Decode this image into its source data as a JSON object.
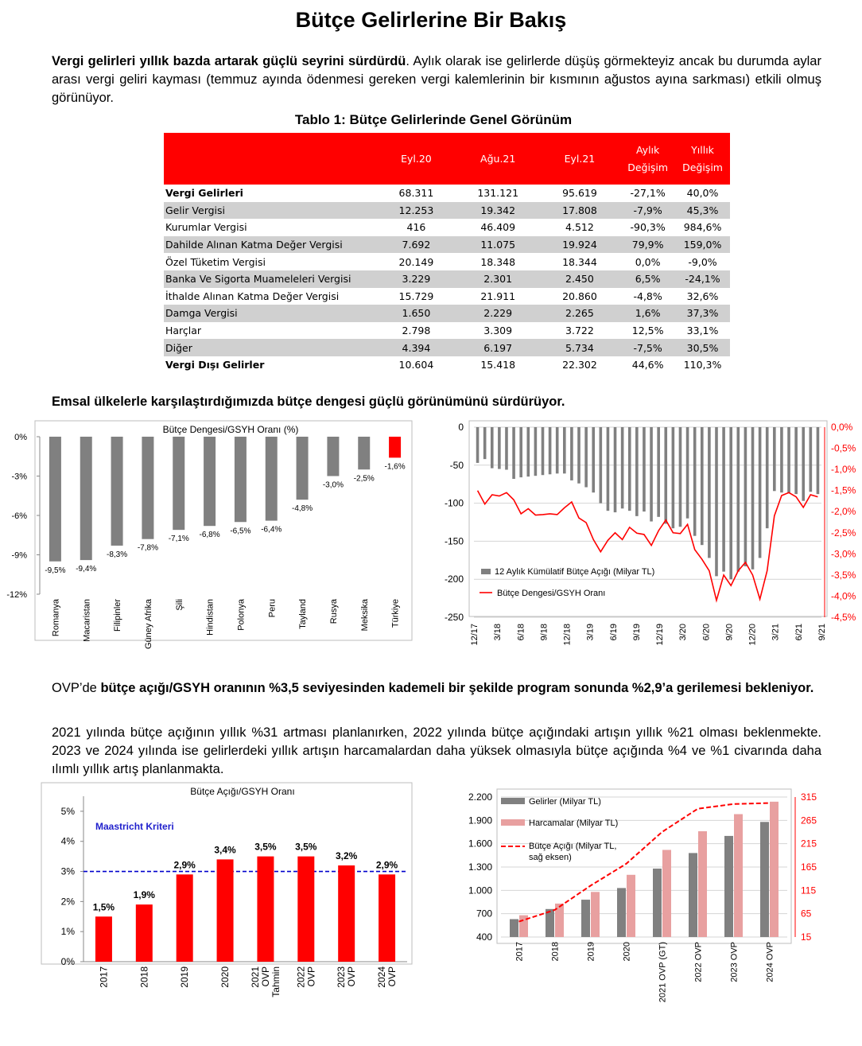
{
  "title": "Bütçe Gelirlerine Bir Bakış",
  "para1": {
    "bold": "Vergi gelirleri yıllık bazda artarak güçlü seyrini sürdürdü",
    "rest": ". Aylık olarak ise gelirlerde düşüş görmekteyiz ancak bu durumda aylar arası vergi geliri kayması (temmuz ayında ödenmesi gereken vergi kalemlerinin bir kısmının ağustos ayına sarkması) etkili olmuş görünüyor."
  },
  "table": {
    "caption": "Tablo 1: Bütçe Gelirlerinde Genel Görünüm",
    "headers": [
      "",
      "Eyl.20",
      "Ağu.21",
      "Eyl.21",
      "Aylık Değişim",
      "Yıllık Değişim"
    ],
    "rows": [
      {
        "label": "Vergi Gelirleri",
        "values": [
          "68.311",
          "131.121",
          "95.619",
          "-27,1%",
          "40,0%"
        ],
        "bold": true,
        "shade": false
      },
      {
        "label": "Gelir Vergisi",
        "values": [
          "12.253",
          "19.342",
          "17.808",
          "-7,9%",
          "45,3%"
        ],
        "bold": false,
        "shade": true
      },
      {
        "label": "Kurumlar Vergisi",
        "values": [
          "416",
          "46.409",
          "4.512",
          "-90,3%",
          "984,6%"
        ],
        "bold": false,
        "shade": false
      },
      {
        "label": "Dahilde Alınan Katma Değer Vergisi",
        "values": [
          "7.692",
          "11.075",
          "19.924",
          "79,9%",
          "159,0%"
        ],
        "bold": false,
        "shade": true
      },
      {
        "label": "Özel Tüketim Vergisi",
        "values": [
          "20.149",
          "18.348",
          "18.344",
          "0,0%",
          "-9,0%"
        ],
        "bold": false,
        "shade": false
      },
      {
        "label": "Banka Ve Sigorta Muameleleri Vergisi",
        "values": [
          "3.229",
          "2.301",
          "2.450",
          "6,5%",
          "-24,1%"
        ],
        "bold": false,
        "shade": true
      },
      {
        "label": "İthalde Alınan Katma Değer Vergisi",
        "values": [
          "15.729",
          "21.911",
          "20.860",
          "-4,8%",
          "32,6%"
        ],
        "bold": false,
        "shade": false
      },
      {
        "label": "Damga Vergisi",
        "values": [
          "1.650",
          "2.229",
          "2.265",
          "1,6%",
          "37,3%"
        ],
        "bold": false,
        "shade": true
      },
      {
        "label": "Harçlar",
        "values": [
          "2.798",
          "3.309",
          "3.722",
          "12,5%",
          "33,1%"
        ],
        "bold": false,
        "shade": false
      },
      {
        "label": "Diğer",
        "values": [
          "4.394",
          "6.197",
          "5.734",
          "-7,5%",
          "30,5%"
        ],
        "bold": false,
        "shade": true
      },
      {
        "label": "Vergi Dışı Gelirler",
        "values": [
          "10.604",
          "15.418",
          "22.302",
          "44,6%",
          "110,3%"
        ],
        "bold": true,
        "shade": false
      }
    ]
  },
  "para2": "Emsal ülkelerle karşılaştırdığımızda bütçe dengesi güçlü görünümünü sürdürüyor.",
  "para3": {
    "pre": "OVP’de ",
    "bold": "bütçe açığı/GSYH oranının %3,5 seviyesinden kademeli bir şekilde program sonunda %2,9’a gerilemesi bekleniyor."
  },
  "para4": "2021 yılında bütçe açığının yıllık %31 artması planlanırken, 2022 yılında bütçe açığındaki artışın yıllık %21 olması beklenmekte. 2023 ve 2024 yılında ise gelirlerdeki yıllık artışın harcamalardan daha yüksek olmasıyla bütçe açığında %4 ve %1 civarında daha ılımlı yıllık artış planlanmakta.",
  "chart_data": [
    {
      "type": "bar",
      "title": "Bütçe Dengesi/GSYH Oranı (%)",
      "categories": [
        "Romanya",
        "Macaristan",
        "Filipinler",
        "Güney Afrika",
        "Şili",
        "Hindistan",
        "Polonya",
        "Peru",
        "Tayland",
        "Rusya",
        "Meksika",
        "Türkiye"
      ],
      "values": [
        -9.5,
        -9.4,
        -8.3,
        -7.8,
        -7.1,
        -6.8,
        -6.5,
        -6.4,
        -4.8,
        -3.0,
        -2.5,
        -1.6
      ],
      "data_labels": [
        "-9,5%",
        "-9,4%",
        "-8,3%",
        "-7,8%",
        "-7,1%",
        "-6,8%",
        "-6,5%",
        "-6,4%",
        "-4,8%",
        "-3,0%",
        "-2,5%",
        "-1,6%"
      ],
      "yticks": [
        "0%",
        "-3%",
        "-6%",
        "-9%",
        "-12%"
      ],
      "ylim": [
        -12,
        0
      ],
      "colors": {
        "bar": "#808080",
        "highlight": "#ff0000"
      }
    },
    {
      "type": "bar+line",
      "x_ticks": [
        "12/17",
        "3/18",
        "6/18",
        "9/18",
        "12/18",
        "3/19",
        "6/19",
        "9/19",
        "12/19",
        "3/20",
        "6/20",
        "9/20",
        "12/20",
        "3/21",
        "6/21",
        "9/21"
      ],
      "y_left_ticks": [
        "0",
        "-50",
        "-100",
        "-150",
        "-200",
        "-250"
      ],
      "y_right_ticks": [
        "0,0%",
        "-0,5%",
        "-1,0%",
        "-1,5%",
        "-2,0%",
        "-2,5%",
        "-3,0%",
        "-3,5%",
        "-4,0%",
        "-4,5%"
      ],
      "ylim_left": [
        -250,
        0
      ],
      "ylim_right": [
        -4.5,
        0
      ],
      "series": [
        {
          "name": "12 Aylık Kümülatif Bütçe Açığı (Milyar TL)",
          "axis": "left",
          "color": "#808080",
          "values": [
            -47,
            -42,
            -54,
            -55,
            -56,
            -68,
            -66,
            -65,
            -64,
            -63,
            -62,
            -61,
            -61,
            -70,
            -74,
            -79,
            -86,
            -100,
            -110,
            -112,
            -107,
            -110,
            -117,
            -111,
            -124,
            -118,
            -127,
            -133,
            -131,
            -120,
            -143,
            -155,
            -172,
            -196,
            -190,
            -200,
            -190,
            -183,
            -187,
            -172,
            -133,
            -84,
            -86,
            -87,
            -88,
            -97,
            -85,
            -88
          ]
        },
        {
          "name": "Bütçe Dengesi/GSYH Oranı",
          "axis": "right",
          "color": "#ff0000",
          "values": [
            -1.5,
            -1.82,
            -1.6,
            -1.63,
            -1.55,
            -1.72,
            -2.05,
            -1.93,
            -2.08,
            -2.07,
            -2.05,
            -2.07,
            -1.91,
            -1.77,
            -2.15,
            -2.26,
            -2.66,
            -2.95,
            -2.68,
            -2.5,
            -2.66,
            -2.37,
            -2.51,
            -2.54,
            -2.8,
            -2.45,
            -2.2,
            -2.5,
            -2.52,
            -2.3,
            -2.9,
            -3.13,
            -3.4,
            -4.1,
            -3.5,
            -3.75,
            -3.4,
            -3.2,
            -3.5,
            -4.07,
            -3.4,
            -2.1,
            -1.62,
            -1.55,
            -1.65,
            -1.9,
            -1.6,
            -1.65
          ]
        }
      ]
    },
    {
      "type": "bar",
      "title": "Bütçe Açığı/GSYH Oranı",
      "categories": [
        [
          "2017"
        ],
        [
          "2018"
        ],
        [
          "2019"
        ],
        [
          "2020"
        ],
        [
          "2021",
          "OVP",
          "Tahmin"
        ],
        [
          "2022",
          "OVP"
        ],
        [
          "2023",
          "OVP"
        ],
        [
          "2024",
          "OVP"
        ]
      ],
      "values": [
        1.5,
        1.9,
        2.9,
        3.4,
        3.5,
        3.5,
        3.2,
        2.9
      ],
      "data_labels": [
        "1,5%",
        "1,9%",
        "2,9%",
        "3,4%",
        "3,5%",
        "3,5%",
        "3,2%",
        "2,9%"
      ],
      "yticks": [
        "0%",
        "1%",
        "2%",
        "3%",
        "4%",
        "5%"
      ],
      "ylim": [
        0,
        5.5
      ],
      "reference_line": {
        "label": "Maastricht Kriteri",
        "value": 3.0,
        "color": "#0000cc"
      },
      "colors": {
        "bar": "#ff0000"
      }
    },
    {
      "type": "bar+line",
      "categories": [
        "2017",
        "2018",
        "2019",
        "2020",
        "2021 OVP (GT)",
        "2022 OVP",
        "2023 OVP",
        "2024 OVP"
      ],
      "y_left_ticks": [
        "400",
        "700",
        "1.000",
        "1.300",
        "1.600",
        "1.900",
        "2.200"
      ],
      "y_right_ticks": [
        "15",
        "65",
        "115",
        "165",
        "215",
        "265",
        "315"
      ],
      "ylim_left": [
        400,
        2200
      ],
      "ylim_right": [
        15,
        315
      ],
      "series": [
        {
          "name": "Gelirler (Milyar TL)",
          "axis": "left",
          "kind": "bar",
          "color": "#808080",
          "values": [
            630,
            760,
            880,
            1030,
            1280,
            1480,
            1700,
            1880
          ]
        },
        {
          "name": "Harcamalar (Milyar TL)",
          "axis": "left",
          "kind": "bar",
          "color": "#e8a0a0",
          "values": [
            680,
            830,
            980,
            1200,
            1520,
            1760,
            1980,
            2140
          ]
        },
        {
          "name": "Bütçe Açığı (Milyar TL, sağ eksen)",
          "legend_lines": [
            "Bütçe Açığı (Milyar TL,",
            "sağ eksen)"
          ],
          "axis": "right",
          "kind": "line",
          "color": "#ff0000",
          "values": [
            48,
            73,
            125,
            172,
            240,
            290,
            300,
            302
          ]
        }
      ]
    }
  ]
}
